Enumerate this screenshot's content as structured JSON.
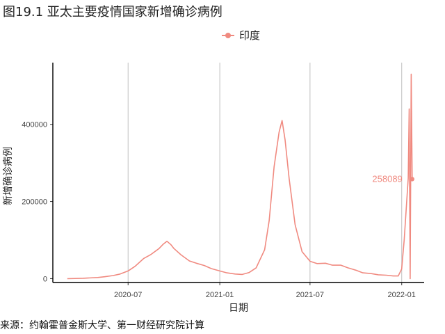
{
  "header": {
    "title": "图19.1 亚太主要疫情国家新增确诊病例"
  },
  "legend": {
    "label": "印度"
  },
  "footer": {
    "source": "来源：约翰霍普金斯大学、第一财经研究院计算"
  },
  "colors": {
    "series": "#F08A80",
    "grid": "#BEBEBE",
    "axis": "#000000"
  },
  "chart_data": {
    "type": "line",
    "title": "图19.1 亚太主要疫情国家新增确诊病例",
    "xlabel": "日期",
    "ylabel": "新增确诊病例",
    "x_ticks": [
      "2020-07",
      "2021-01",
      "2021-07",
      "2022-01"
    ],
    "y_ticks": [
      0,
      200000,
      400000
    ],
    "xlim": [
      "2020-02-01",
      "2022-02-15"
    ],
    "ylim": [
      -10000,
      560000
    ],
    "grid": {
      "vertical": true,
      "horizontal": false
    },
    "legend_position": "top",
    "series": [
      {
        "name": "印度",
        "color": "#F08A80",
        "points": [
          [
            "2020-03-01",
            0
          ],
          [
            "2020-04-01",
            1000
          ],
          [
            "2020-05-01",
            3000
          ],
          [
            "2020-05-15",
            5000
          ],
          [
            "2020-06-01",
            8000
          ],
          [
            "2020-06-15",
            12000
          ],
          [
            "2020-07-01",
            20000
          ],
          [
            "2020-07-15",
            32000
          ],
          [
            "2020-08-01",
            52000
          ],
          [
            "2020-08-15",
            62000
          ],
          [
            "2020-09-01",
            78000
          ],
          [
            "2020-09-10",
            90000
          ],
          [
            "2020-09-17",
            97000
          ],
          [
            "2020-09-25",
            88000
          ],
          [
            "2020-10-01",
            78000
          ],
          [
            "2020-10-15",
            62000
          ],
          [
            "2020-11-01",
            46000
          ],
          [
            "2020-11-15",
            40000
          ],
          [
            "2020-12-01",
            34000
          ],
          [
            "2020-12-15",
            26000
          ],
          [
            "2021-01-01",
            20000
          ],
          [
            "2021-01-15",
            15000
          ],
          [
            "2021-02-01",
            12000
          ],
          [
            "2021-02-15",
            11000
          ],
          [
            "2021-03-01",
            16000
          ],
          [
            "2021-03-15",
            28000
          ],
          [
            "2021-04-01",
            75000
          ],
          [
            "2021-04-10",
            150000
          ],
          [
            "2021-04-20",
            290000
          ],
          [
            "2021-04-30",
            380000
          ],
          [
            "2021-05-06",
            410000
          ],
          [
            "2021-05-12",
            360000
          ],
          [
            "2021-05-20",
            260000
          ],
          [
            "2021-06-01",
            140000
          ],
          [
            "2021-06-15",
            70000
          ],
          [
            "2021-07-01",
            45000
          ],
          [
            "2021-07-15",
            39000
          ],
          [
            "2021-08-01",
            40000
          ],
          [
            "2021-08-15",
            35000
          ],
          [
            "2021-09-01",
            35000
          ],
          [
            "2021-09-15",
            28000
          ],
          [
            "2021-10-01",
            22000
          ],
          [
            "2021-10-15",
            15000
          ],
          [
            "2021-11-01",
            13000
          ],
          [
            "2021-11-15",
            10000
          ],
          [
            "2021-12-01",
            9000
          ],
          [
            "2021-12-15",
            7000
          ],
          [
            "2021-12-25",
            7000
          ],
          [
            "2022-01-01",
            25000
          ],
          [
            "2022-01-06",
            100000
          ],
          [
            "2022-01-10",
            180000
          ],
          [
            "2022-01-14",
            260000
          ],
          [
            "2022-01-16",
            440000
          ],
          [
            "2022-01-18",
            0
          ],
          [
            "2022-01-20",
            530000
          ],
          [
            "2022-01-22",
            258089
          ]
        ]
      }
    ],
    "annotations": [
      {
        "x": "2022-01-22",
        "y": 258089,
        "label": "258089"
      }
    ]
  }
}
